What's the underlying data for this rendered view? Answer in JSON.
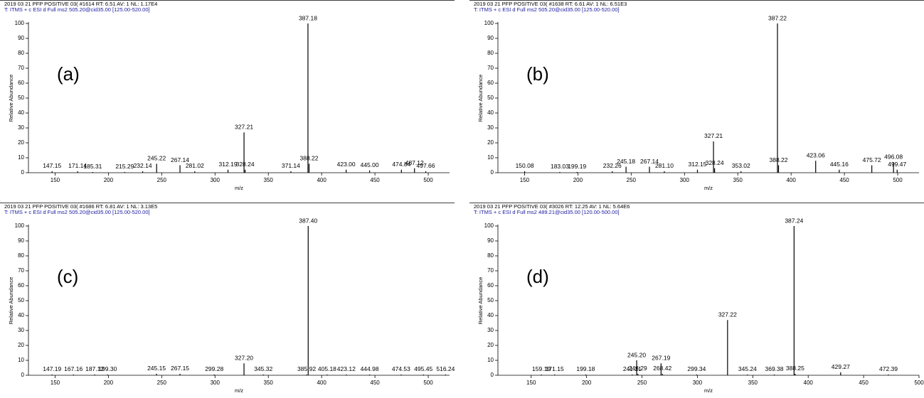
{
  "chart_data": [
    {
      "type": "stick",
      "header": [
        "2019 03 21 PFP POSITIVE   03( #1614  RT: 6.51  AV: 1  NL: 1.17E4",
        "T: ITMS + c ESI d Full ms2 505.20@cid35.00 [125.00-520.00]"
      ],
      "panel_label": "(a)",
      "x_label": "m/z",
      "y_label": "Relative Abundance",
      "color": "#000000",
      "xlim": [
        125,
        520
      ],
      "ylim": [
        0,
        100
      ],
      "xticks": [
        150,
        200,
        250,
        300,
        350,
        400,
        450,
        500
      ],
      "yticks": [
        0,
        10,
        20,
        30,
        40,
        50,
        60,
        70,
        80,
        90,
        100
      ],
      "x": [
        147.15,
        171.14,
        185.31,
        215.29,
        232.14,
        245.22,
        267.14,
        281.02,
        312.19,
        327.21,
        328.24,
        371.14,
        387.18,
        388.22,
        423.0,
        445.0,
        474.84,
        487.12,
        497.66
      ],
      "x_labels": [
        "147.15",
        "171.14",
        "185.31",
        "215.29",
        "232.14",
        "245.22",
        "267.14",
        "281.02",
        "312.19",
        "327.21",
        "328.24",
        "371.14",
        "387.18",
        "388.22",
        "423.00",
        "445.00",
        "474.84",
        "487.12",
        "497.66"
      ],
      "values": [
        1,
        1,
        0.5,
        0.5,
        1,
        6,
        5,
        1,
        2,
        27,
        2,
        1,
        100,
        6,
        2,
        1.5,
        2,
        3,
        1
      ]
    },
    {
      "type": "stick",
      "header": [
        "2019 03 21 PFP POSITIVE   03( #1638  RT: 6.61  AV: 1  NL: 6.51E3",
        "T: ITMS + c ESI d Full ms2 505.20@cid35.00 [125.00-520.00]"
      ],
      "panel_label": "(b)",
      "x_label": "m/z",
      "y_label": "Relative Abundance",
      "color": "#000000",
      "xlim": [
        125,
        520
      ],
      "ylim": [
        0,
        100
      ],
      "xticks": [
        150,
        200,
        250,
        300,
        350,
        400,
        450,
        500
      ],
      "yticks": [
        0,
        10,
        20,
        30,
        40,
        50,
        60,
        70,
        80,
        90,
        100
      ],
      "x": [
        150.08,
        183.03,
        199.19,
        232.26,
        245.18,
        267.14,
        281.1,
        312.15,
        327.21,
        328.24,
        353.02,
        387.22,
        388.22,
        423.06,
        445.16,
        475.72,
        496.08,
        499.47
      ],
      "x_labels": [
        "150.08",
        "183.03",
        "199.19",
        "232.26",
        "245.18",
        "267.14",
        "281.10",
        "312.15",
        "327.21",
        "328.24",
        "353.02",
        "387.22",
        "388.22",
        "423.06",
        "445.16",
        "475.72",
        "496.08",
        "499.47"
      ],
      "values": [
        1,
        0.5,
        0.5,
        1,
        4,
        4,
        1,
        2,
        21,
        3,
        1,
        100,
        5,
        8,
        2,
        5,
        7,
        2
      ]
    },
    {
      "type": "stick",
      "header": [
        "2019 03 21 PFP POSITIVE   03( #1686  RT: 6.81  AV: 1  NL: 3.13E5",
        "T: ITMS + c ESI d Full ms2 505.20@cid35.00 [125.00-520.00]"
      ],
      "panel_label": "(c)",
      "x_label": "m/z",
      "y_label": "Relative Abundance",
      "color": "#000000",
      "xlim": [
        125,
        520
      ],
      "ylim": [
        0,
        100
      ],
      "xticks": [
        150,
        200,
        250,
        300,
        350,
        400,
        450,
        500
      ],
      "yticks": [
        0,
        10,
        20,
        30,
        40,
        50,
        60,
        70,
        80,
        90,
        100
      ],
      "x": [
        147.19,
        167.16,
        187.12,
        199.3,
        245.15,
        267.15,
        299.28,
        327.2,
        345.32,
        385.92,
        387.4,
        405.18,
        423.12,
        444.98,
        474.53,
        495.45,
        516.24
      ],
      "x_labels": [
        "147.19",
        "167.16",
        "187.12",
        "199.30",
        "245.15",
        "267.15",
        "299.28",
        "327.20",
        "345.32",
        "385.92",
        "387.40",
        "405.18",
        "423.12",
        "444.98",
        "474.53",
        "495.45",
        "516.24"
      ],
      "values": [
        0.5,
        0.5,
        0.5,
        0.5,
        1,
        1,
        0.5,
        8,
        0.5,
        0.5,
        100,
        0.5,
        0.5,
        0.5,
        0.5,
        0.5,
        0.5
      ]
    },
    {
      "type": "stick",
      "header": [
        "2019 03 21 PFP POSITIVE   03( #3026  RT: 12.25  AV: 1  NL: 5.64E6",
        "T: ITMS + c ESI d Full ms2 489.21@cid35.00 [120.00-500.00]"
      ],
      "panel_label": "(d)",
      "x_label": "m/z",
      "y_label": "Relative Abundance",
      "color": "#000000",
      "xlim": [
        120,
        500
      ],
      "ylim": [
        0,
        100
      ],
      "xticks": [
        150,
        200,
        250,
        300,
        350,
        400,
        450,
        500
      ],
      "yticks": [
        0,
        10,
        20,
        30,
        40,
        50,
        60,
        70,
        80,
        90,
        100
      ],
      "x": [
        159.19,
        171.15,
        199.18,
        241.21,
        245.2,
        246.29,
        267.19,
        268.42,
        299.34,
        327.22,
        345.24,
        369.38,
        387.24,
        388.25,
        429.27,
        472.39
      ],
      "x_labels": [
        "159.19",
        "171.15",
        "199.18",
        "241.21",
        "245.20",
        "246.29",
        "267.19",
        "268.42",
        "299.34",
        "327.22",
        "345.24",
        "369.38",
        "387.24",
        "388.25",
        "429.27",
        "472.39"
      ],
      "values": [
        0.5,
        0.5,
        0.5,
        0.5,
        10,
        1,
        8,
        1,
        0.5,
        37,
        0.5,
        0.5,
        100,
        1,
        2,
        0.5
      ]
    }
  ]
}
